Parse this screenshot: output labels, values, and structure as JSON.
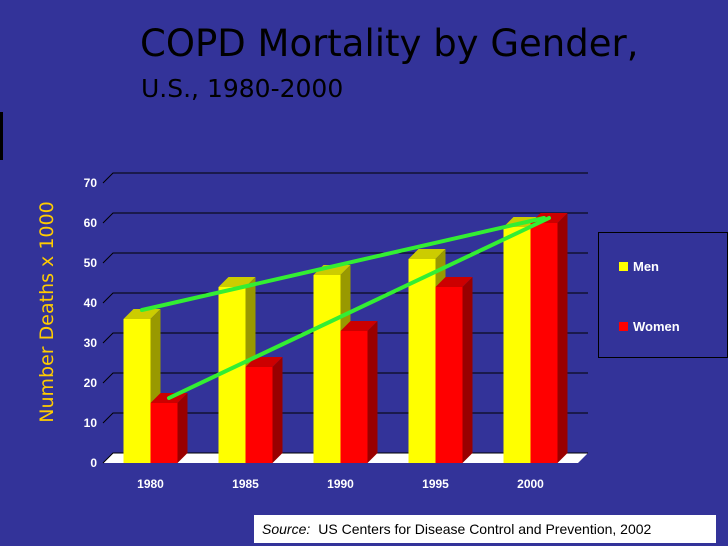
{
  "slide": {
    "title": "COPD Mortality by Gender,",
    "subtitle": "U.S., 1980-2000",
    "source_label": "Source:",
    "source_text": "US Centers for Disease Control and Prevention, 2002"
  },
  "colors": {
    "background": "#333399",
    "men": "#ffff00",
    "men_top": "#cccc00",
    "men_side": "#999900",
    "women": "#ff0000",
    "women_top": "#cc0000",
    "women_side": "#990000",
    "trend": "#33ee33",
    "grid": "#000000",
    "ylabel": "#ffcc00"
  },
  "chart_data": {
    "type": "bar",
    "ylabel": "Number Deaths x 1000",
    "xlabel": "",
    "categories": [
      "1980",
      "1985",
      "1990",
      "1995",
      "2000"
    ],
    "ylim": [
      0,
      70
    ],
    "yticks": [
      0,
      10,
      20,
      30,
      40,
      50,
      60,
      70
    ],
    "series": [
      {
        "name": "Men",
        "values": [
          36,
          44,
          47,
          51,
          59
        ]
      },
      {
        "name": "Women",
        "values": [
          15,
          24,
          33,
          44,
          60
        ]
      }
    ],
    "trendlines": [
      {
        "series": "Men",
        "start": 37,
        "end": 60
      },
      {
        "series": "Women",
        "start": 15,
        "end": 60
      }
    ],
    "legend_position": "right",
    "grid": true
  }
}
